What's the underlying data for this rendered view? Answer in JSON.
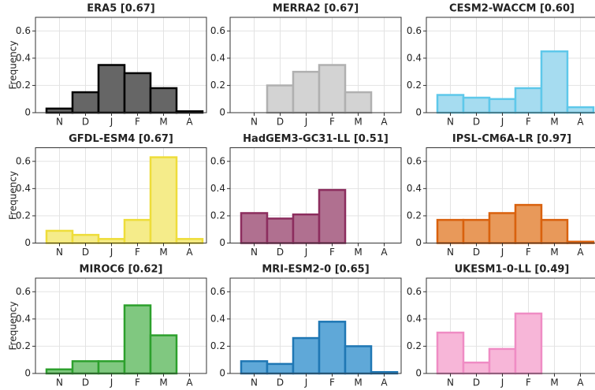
{
  "chart_data": [
    {
      "type": "bar",
      "title": "ERA5 [0.67]",
      "ylabel": "Frequency",
      "categories": [
        "N",
        "D",
        "J",
        "F",
        "M",
        "A"
      ],
      "values": [
        0.03,
        0.15,
        0.35,
        0.29,
        0.18,
        0.01
      ],
      "color": "#666666",
      "edgecolor": "#000000",
      "ylim": [
        0,
        0.7
      ],
      "yticks": [
        0,
        0.2,
        0.4,
        0.6
      ],
      "grid": true
    },
    {
      "type": "bar",
      "title": "MERRA2 [0.67]",
      "categories": [
        "N",
        "D",
        "J",
        "F",
        "M",
        "A"
      ],
      "values": [
        0,
        0.2,
        0.3,
        0.35,
        0.15,
        0
      ],
      "color": "#d3d3d3",
      "edgecolor": "#b0b0b0",
      "ylim": [
        0,
        0.7
      ],
      "yticks": [
        0,
        0.2,
        0.4,
        0.6
      ],
      "grid": true
    },
    {
      "type": "bar",
      "title": "CESM2-WACCM [0.60]",
      "categories": [
        "N",
        "D",
        "J",
        "F",
        "M",
        "A"
      ],
      "values": [
        0.13,
        0.11,
        0.1,
        0.18,
        0.45,
        0.04
      ],
      "color": "#a6dcf0",
      "edgecolor": "#5ec8ea",
      "ylim": [
        0,
        0.7
      ],
      "yticks": [
        0,
        0.2,
        0.4,
        0.6
      ],
      "grid": true
    },
    {
      "type": "bar",
      "title": "GFDL-ESM4 [0.67]",
      "ylabel": "Frequency",
      "categories": [
        "N",
        "D",
        "J",
        "F",
        "M",
        "A"
      ],
      "values": [
        0.09,
        0.06,
        0.03,
        0.17,
        0.63,
        0.03
      ],
      "color": "#f5ec8a",
      "edgecolor": "#eedd3a",
      "ylim": [
        0,
        0.7
      ],
      "yticks": [
        0,
        0.2,
        0.4,
        0.6
      ],
      "grid": true
    },
    {
      "type": "bar",
      "title": "HadGEM3-GC31-LL [0.51]",
      "categories": [
        "N",
        "D",
        "J",
        "F",
        "M",
        "A"
      ],
      "values": [
        0.22,
        0.18,
        0.21,
        0.39,
        0,
        0
      ],
      "color": "#b07090",
      "edgecolor": "#8c2d5e",
      "ylim": [
        0,
        0.7
      ],
      "yticks": [
        0,
        0.2,
        0.4,
        0.6
      ],
      "grid": true
    },
    {
      "type": "bar",
      "title": "IPSL-CM6A-LR [0.97]",
      "categories": [
        "N",
        "D",
        "J",
        "F",
        "M",
        "A"
      ],
      "values": [
        0.17,
        0.17,
        0.22,
        0.28,
        0.17,
        0.01
      ],
      "color": "#e8995a",
      "edgecolor": "#d9610d",
      "ylim": [
        0,
        0.7
      ],
      "yticks": [
        0,
        0.2,
        0.4,
        0.6
      ],
      "grid": true
    },
    {
      "type": "bar",
      "title": "MIROC6 [0.62]",
      "ylabel": "Frequency",
      "categories": [
        "N",
        "D",
        "J",
        "F",
        "M",
        "A"
      ],
      "values": [
        0.03,
        0.09,
        0.09,
        0.5,
        0.28,
        0
      ],
      "color": "#80c880",
      "edgecolor": "#2ca02c",
      "ylim": [
        0,
        0.7
      ],
      "yticks": [
        0,
        0.2,
        0.4,
        0.6
      ],
      "grid": true
    },
    {
      "type": "bar",
      "title": "MRI-ESM2-0 [0.65]",
      "categories": [
        "N",
        "D",
        "J",
        "F",
        "M",
        "A"
      ],
      "values": [
        0.09,
        0.07,
        0.26,
        0.38,
        0.2,
        0.01
      ],
      "color": "#5fa8d8",
      "edgecolor": "#1f77b4",
      "ylim": [
        0,
        0.7
      ],
      "yticks": [
        0,
        0.2,
        0.4,
        0.6
      ],
      "grid": true
    },
    {
      "type": "bar",
      "title": "UKESM1-0-LL [0.49]",
      "categories": [
        "N",
        "D",
        "J",
        "F",
        "M",
        "A"
      ],
      "values": [
        0.3,
        0.08,
        0.18,
        0.44,
        0,
        0
      ],
      "color": "#f7b6d8",
      "edgecolor": "#ef8cc4",
      "ylim": [
        0,
        0.7
      ],
      "yticks": [
        0,
        0.2,
        0.4,
        0.6
      ],
      "grid": true
    }
  ]
}
